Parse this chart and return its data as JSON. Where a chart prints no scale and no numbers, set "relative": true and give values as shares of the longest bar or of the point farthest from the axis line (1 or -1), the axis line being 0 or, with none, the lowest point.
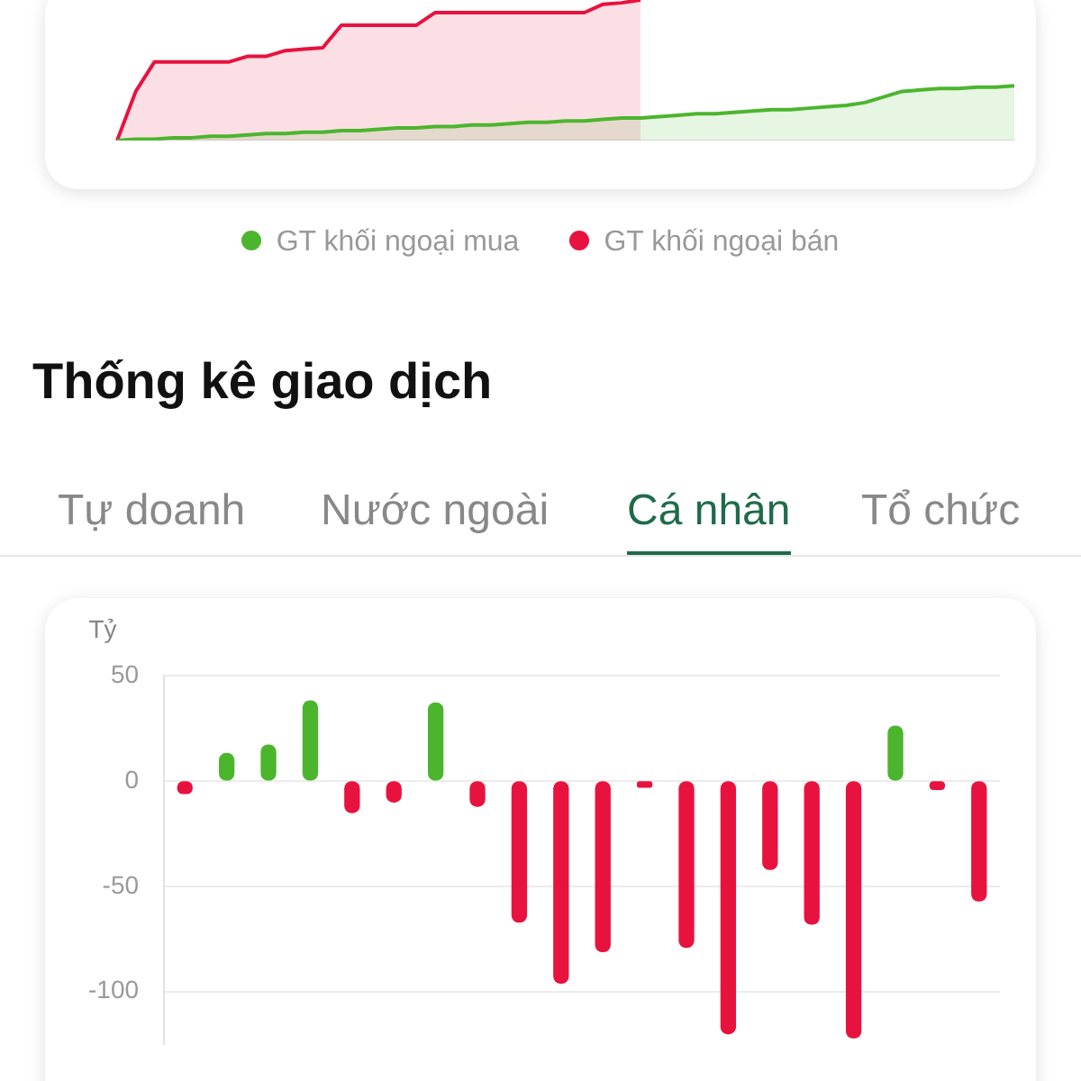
{
  "chart_data": [
    {
      "type": "area",
      "relative": true,
      "marker": "none",
      "legend": "bottom",
      "grid": false,
      "categories": [
        null,
        null,
        null,
        null,
        null,
        null,
        null,
        null,
        null,
        null,
        null,
        null,
        null,
        null,
        null,
        null,
        null,
        null,
        null,
        null,
        null,
        null,
        null,
        null,
        null,
        null,
        null,
        null,
        null,
        null,
        null,
        null,
        null,
        null,
        null,
        null,
        null,
        null,
        null,
        null,
        null,
        null,
        null,
        null,
        null,
        null,
        null,
        null,
        null
      ],
      "series": [
        {
          "name": "GT khối ngoại mua",
          "color": "#4cb52e",
          "values": [
            0,
            0.01,
            0.01,
            0.02,
            0.02,
            0.03,
            0.03,
            0.04,
            0.05,
            0.05,
            0.06,
            0.06,
            0.07,
            0.07,
            0.08,
            0.09,
            0.09,
            0.1,
            0.1,
            0.11,
            0.11,
            0.12,
            0.13,
            0.13,
            0.14,
            0.14,
            0.15,
            0.16,
            0.16,
            0.17,
            0.18,
            0.19,
            0.19,
            0.2,
            0.21,
            0.22,
            0.22,
            0.23,
            0.24,
            0.25,
            0.27,
            0.31,
            0.35,
            0.36,
            0.37,
            0.37,
            0.38,
            0.38,
            0.39
          ]
        },
        {
          "name": "GT khối ngoại bán",
          "color": "#e8123f",
          "values": [
            0,
            0.35,
            0.56,
            0.56,
            0.56,
            0.56,
            0.56,
            0.6,
            0.6,
            0.64,
            0.65,
            0.66,
            0.82,
            0.82,
            0.82,
            0.82,
            0.82,
            0.91,
            0.91,
            0.91,
            0.91,
            0.91,
            0.91,
            0.91,
            0.91,
            0.91,
            0.97,
            0.98,
            1,
            null,
            null,
            null,
            null,
            null,
            null,
            null,
            null,
            null,
            null,
            null,
            null,
            null,
            null,
            null,
            null,
            null,
            null,
            null,
            null
          ]
        }
      ]
    },
    {
      "type": "bar",
      "title": "Thống kê giao dịch",
      "annotations": [
        "Tự doanh",
        "Nước ngoài",
        "Cá nhân",
        "Tổ chức"
      ],
      "ylabel": "Tỷ",
      "grid": "y",
      "tick_labels": "y",
      "legend": false,
      "categories": [
        null,
        null,
        null,
        null,
        null,
        null,
        null,
        null,
        null,
        null,
        null,
        null,
        null,
        null,
        null,
        null,
        null,
        null,
        null,
        null
      ],
      "values": [
        -6,
        13,
        17,
        38,
        -15,
        -10,
        37,
        -12,
        -67,
        -96,
        -81,
        -3,
        -79,
        -120,
        -42,
        -68,
        -122,
        26,
        -4,
        -57
      ],
      "colors": [
        "#e8123f",
        "#4cb52e",
        "#4cb52e",
        "#4cb52e",
        "#e8123f",
        "#e8123f",
        "#4cb52e",
        "#e8123f",
        "#e8123f",
        "#e8123f",
        "#e8123f",
        "#e8123f",
        "#e8123f",
        "#e8123f",
        "#e8123f",
        "#e8123f",
        "#e8123f",
        "#4cb52e",
        "#e8123f",
        "#e8123f"
      ],
      "ylim": [
        -125,
        50
      ],
      "yticks": [
        50,
        0,
        -50,
        -100
      ]
    }
  ]
}
